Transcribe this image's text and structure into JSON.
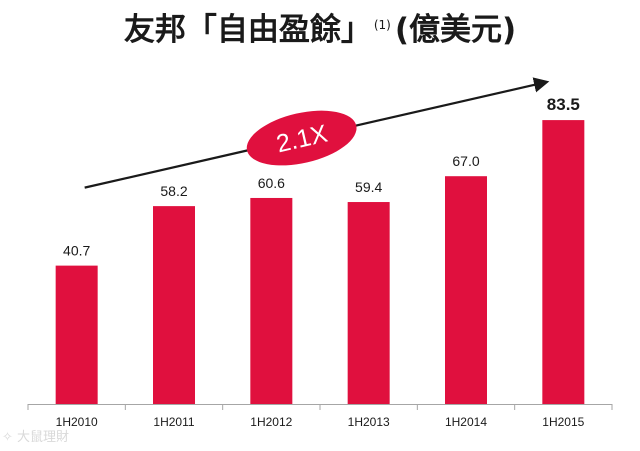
{
  "title": {
    "main": "友邦「自由盈餘」",
    "footnote": "(1)",
    "unit": "(億美元)"
  },
  "chart_data": {
    "type": "bar",
    "categories": [
      "1H2010",
      "1H2011",
      "1H2012",
      "1H2013",
      "1H2014",
      "1H2015"
    ],
    "values": [
      40.7,
      58.2,
      60.6,
      59.4,
      67.0,
      83.5
    ],
    "value_labels": [
      "40.7",
      "58.2",
      "60.6",
      "59.4",
      "67.0",
      "83.5"
    ],
    "highlight_last_label": true,
    "ylim": [
      0,
      100
    ],
    "grid": false,
    "legend": "none",
    "bar_color": "#e0103e",
    "annotation": {
      "text": "2.1X",
      "shape": "ellipse",
      "fill": "#e0103e",
      "text_color": "#ffffff",
      "arrow": "trend arrow rising from 1H2010 to 1H2015"
    }
  },
  "watermark": "大鼠理財"
}
